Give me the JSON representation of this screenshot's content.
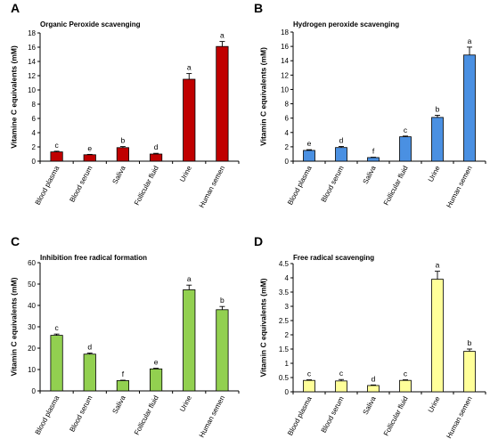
{
  "chart_data": [
    {
      "type": "bar",
      "panel": "A",
      "title": "Organic  Peroxide scavenging",
      "ylabel": "Vitamine C equivalents (mM)",
      "xlabel": "",
      "ylim": [
        0,
        18
      ],
      "yticks": [
        0,
        2,
        4,
        6,
        8,
        10,
        12,
        14,
        16,
        18
      ],
      "ytick_labels": [
        "0",
        "2",
        "4",
        "6",
        "8",
        "10",
        "12",
        "14",
        "16",
        "18"
      ],
      "categories": [
        "Blood plasma",
        "Blood serum",
        "Saliva",
        "Follicular fluid",
        "Urine",
        "Human semen"
      ],
      "values": [
        1.3,
        0.9,
        1.9,
        1.0,
        11.5,
        16.1
      ],
      "errors": [
        0.1,
        0.05,
        0.15,
        0.1,
        0.8,
        0.7
      ],
      "letters": [
        "c",
        "e",
        "b",
        "d",
        "a",
        "a"
      ],
      "color": "#c00000",
      "grid": false
    },
    {
      "type": "bar",
      "panel": "B",
      "title": "Hydrogen peroxide scavenging",
      "ylabel": "Vitamin C equivalents (mM)",
      "xlabel": "",
      "ylim": [
        0,
        18
      ],
      "yticks": [
        0,
        2,
        4,
        6,
        8,
        10,
        12,
        14,
        16,
        18
      ],
      "ytick_labels": [
        "0",
        "2",
        "4",
        "6",
        "8",
        "10",
        "12",
        "14",
        "16",
        "18"
      ],
      "categories": [
        "Blood plasma",
        "Blood serum",
        "Saliva",
        "Follicular fluid",
        "Urine",
        "Human semen"
      ],
      "values": [
        1.5,
        1.9,
        0.5,
        3.4,
        6.1,
        14.8
      ],
      "errors": [
        0.1,
        0.15,
        0.05,
        0.1,
        0.3,
        1.1
      ],
      "letters": [
        "e",
        "d",
        "f",
        "c",
        "b",
        "a"
      ],
      "color": "#4a90e2",
      "grid": false
    },
    {
      "type": "bar",
      "panel": "C",
      "title": "Inhibition free radical formation",
      "ylabel": "Vitamin C equivalents (mM)",
      "xlabel": "",
      "ylim": [
        0,
        60
      ],
      "yticks": [
        0,
        10,
        20,
        30,
        40,
        50,
        60
      ],
      "ytick_labels": [
        "0",
        "10",
        "20",
        "30",
        "40",
        "50",
        "60"
      ],
      "categories": [
        "Blood plasma",
        "Blood serum",
        "Saliva",
        "Follicular fluid",
        "Urine",
        "Human semen"
      ],
      "values": [
        26.0,
        17.2,
        4.8,
        10.3,
        47.3,
        38.0
      ],
      "errors": [
        0.6,
        0.5,
        0.2,
        0.3,
        2.2,
        1.5
      ],
      "letters": [
        "c",
        "d",
        "f",
        "e",
        "a",
        "b"
      ],
      "color": "#92d050",
      "grid": false
    },
    {
      "type": "bar",
      "panel": "D",
      "title": "Free radical scavenging",
      "ylabel": "Vitamin C equivalents (mM)",
      "xlabel": "",
      "ylim": [
        0,
        4.5
      ],
      "yticks": [
        0,
        0.5,
        1,
        1.5,
        2,
        2.5,
        3,
        3.5,
        4,
        4.5
      ],
      "ytick_labels": [
        "0",
        "0.5",
        "1",
        "1.5",
        "2",
        "2.5",
        "3",
        "3.5",
        "4",
        "4.5"
      ],
      "categories": [
        "Blood plasma",
        "Blood serum",
        "Saliva",
        "Follicular fluid",
        "Urine",
        "Human semen"
      ],
      "values": [
        0.4,
        0.38,
        0.22,
        0.4,
        3.95,
        1.42
      ],
      "errors": [
        0.02,
        0.05,
        0.02,
        0.02,
        0.28,
        0.08
      ],
      "letters": [
        "c",
        "c",
        "d",
        "c",
        "a",
        "b"
      ],
      "color": "#ffff99",
      "grid": false
    }
  ]
}
